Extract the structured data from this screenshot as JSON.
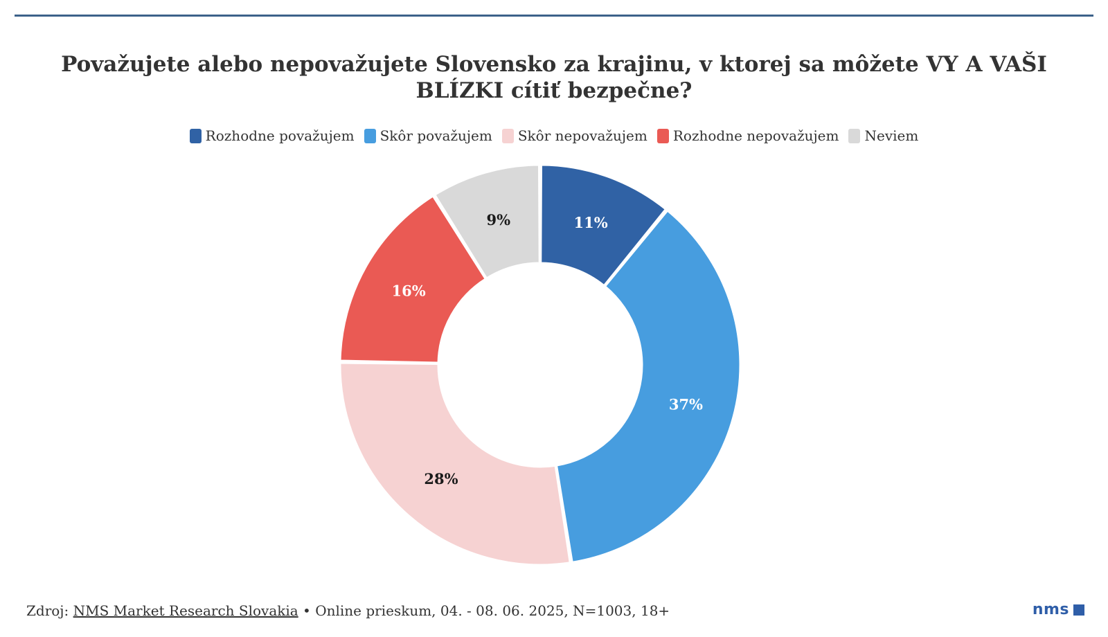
{
  "chart_data": {
    "type": "pie",
    "title": "Považujete alebo nepovažujete Slovensko za krajinu, v ktorej sa môžete VY A VAŠI BLÍZKI cítiť bezpečne?",
    "categories": [
      "Rozhodne považujem",
      "Skôr považujem",
      "Skôr nepovažujem",
      "Rozhodne nepovažujem",
      "Neviem"
    ],
    "values": [
      11,
      37,
      28,
      16,
      9
    ],
    "value_labels": [
      "11%",
      "37%",
      "28%",
      "16%",
      "9%"
    ],
    "colors": [
      "#3062a5",
      "#479ddf",
      "#f6d2d2",
      "#ea5a54",
      "#d9d9d9"
    ],
    "label_colors": [
      "#ffffff",
      "#ffffff",
      "#1a1a1a",
      "#ffffff",
      "#1a1a1a"
    ],
    "legend_position": "top",
    "style": "donut"
  },
  "footer": {
    "prefix": "Zdroj: ",
    "source_link": "NMS Market Research Slovakia",
    "details": " • Online prieskum, 04. - 08. 06. 2025, N=1003, 18+"
  },
  "logo": {
    "text": "nms",
    "icon": "square-icon"
  }
}
